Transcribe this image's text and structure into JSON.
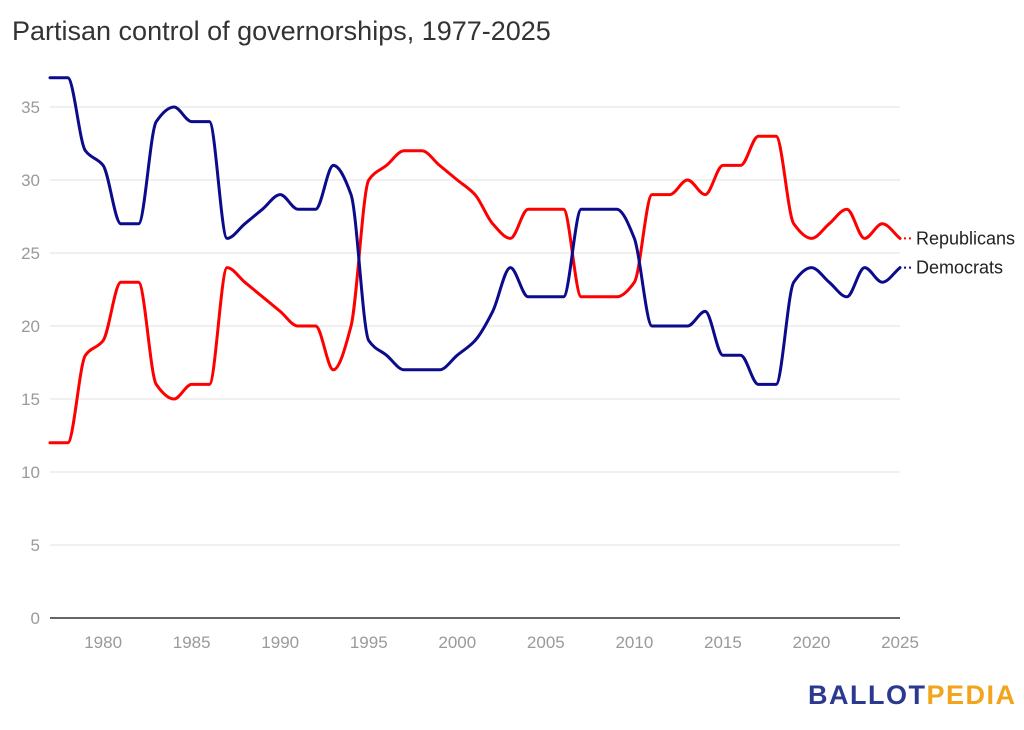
{
  "chart_data": {
    "type": "line",
    "title": "Partisan control of governorships, 1977-2025",
    "xlabel": "",
    "ylabel": "",
    "xlim": [
      1977,
      2025
    ],
    "ylim": [
      0,
      37
    ],
    "yticks": [
      0,
      5,
      10,
      15,
      20,
      25,
      30,
      35
    ],
    "xticks": [
      1980,
      1985,
      1990,
      1995,
      2000,
      2005,
      2010,
      2015,
      2020,
      2025
    ],
    "x": [
      1977,
      1978,
      1979,
      1980,
      1981,
      1982,
      1983,
      1984,
      1985,
      1986,
      1987,
      1988,
      1989,
      1990,
      1991,
      1992,
      1993,
      1994,
      1995,
      1996,
      1997,
      1998,
      1999,
      2000,
      2001,
      2002,
      2003,
      2004,
      2005,
      2006,
      2007,
      2008,
      2009,
      2010,
      2011,
      2012,
      2013,
      2014,
      2015,
      2016,
      2017,
      2018,
      2019,
      2020,
      2021,
      2022,
      2023,
      2024,
      2025
    ],
    "series": [
      {
        "name": "Republicans",
        "color": "#ff0000",
        "values": [
          12,
          12,
          18,
          19,
          23,
          23,
          16,
          15,
          16,
          16,
          24,
          23,
          22,
          21,
          20,
          20,
          17,
          20,
          30,
          31,
          32,
          32,
          31,
          30,
          29,
          27,
          26,
          28,
          28,
          28,
          22,
          22,
          22,
          23,
          29,
          29,
          30,
          29,
          31,
          31,
          33,
          33,
          27,
          26,
          27,
          28,
          26,
          27,
          26
        ]
      },
      {
        "name": "Democrats",
        "color": "#0b0b8c",
        "values": [
          37,
          37,
          32,
          31,
          27,
          27,
          34,
          35,
          34,
          34,
          26,
          27,
          28,
          29,
          28,
          28,
          31,
          29,
          19,
          18,
          17,
          17,
          17,
          18,
          19,
          21,
          24,
          22,
          22,
          22,
          28,
          28,
          28,
          26,
          20,
          20,
          20,
          21,
          18,
          18,
          16,
          16,
          23,
          24,
          23,
          22,
          24,
          23,
          24
        ]
      }
    ],
    "legend": "inline-right"
  },
  "branding": {
    "logo_part1": "BALLOT",
    "logo_part2": "PEDIA",
    "logo_color1": "#2b3990",
    "logo_color2": "#f2a51c"
  }
}
